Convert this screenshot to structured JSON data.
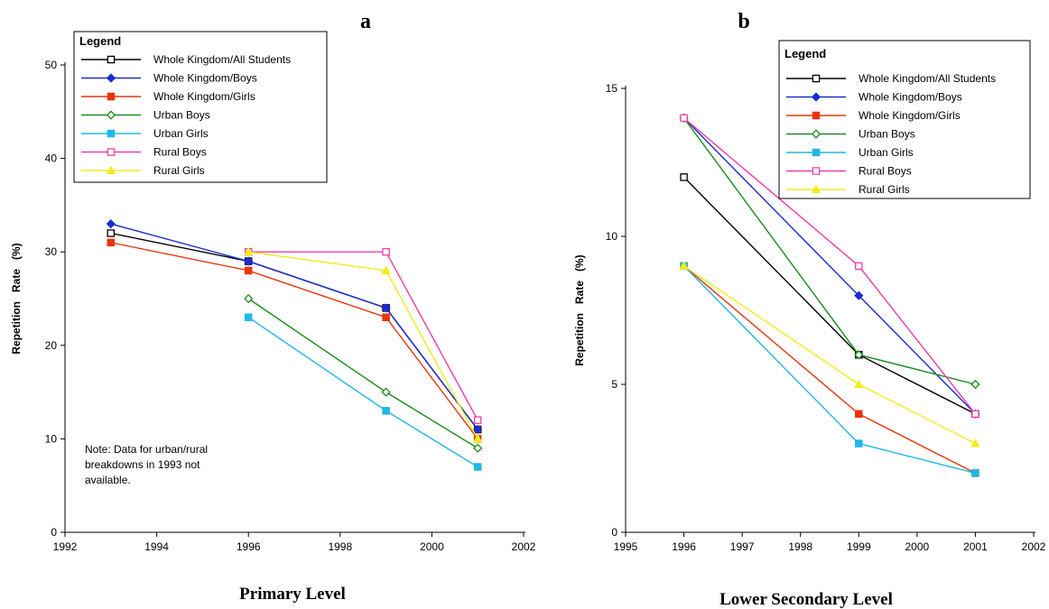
{
  "figure": {
    "panel_a": {
      "letter": "a",
      "caption": "Primary Level",
      "note": [
        "Note: Data for urban/rural",
        "breakdowns in 1993 not",
        "available."
      ]
    },
    "panel_b": {
      "letter": "b",
      "caption": "Lower Secondary Level"
    },
    "legend_title": "Legend"
  },
  "chart_data": [
    {
      "type": "line",
      "title": "a",
      "caption": "Primary Level",
      "ylabel": "Repetition   Rate   (%)",
      "xlabel": "",
      "xlim": [
        1992,
        2002
      ],
      "ylim": [
        0,
        52
      ],
      "xticks": [
        1992,
        1994,
        1996,
        1998,
        2000,
        2002
      ],
      "yticks": [
        0,
        10,
        20,
        30,
        40,
        50
      ],
      "grid": false,
      "legend_position": "top-left",
      "series": [
        {
          "name": "Whole Kingdom/All Students",
          "color": "#000000",
          "marker": "square-open",
          "points": [
            [
              1993,
              32
            ],
            [
              1996,
              29
            ],
            [
              1999,
              24
            ],
            [
              2001,
              11
            ]
          ]
        },
        {
          "name": "Whole Kingdom/Boys",
          "color": "#1a2bd6",
          "marker": "diamond-filled",
          "points": [
            [
              1993,
              33
            ],
            [
              1996,
              29
            ],
            [
              1999,
              24
            ],
            [
              2001,
              11
            ]
          ]
        },
        {
          "name": "Whole Kingdom/Girls",
          "color": "#e8350c",
          "marker": "square-filled",
          "points": [
            [
              1993,
              31
            ],
            [
              1996,
              28
            ],
            [
              1999,
              23
            ],
            [
              2001,
              10
            ]
          ]
        },
        {
          "name": "Urban Boys",
          "color": "#1a8c1a",
          "marker": "diamond-open",
          "points": [
            [
              1996,
              25
            ],
            [
              1999,
              15
            ],
            [
              2001,
              9
            ]
          ]
        },
        {
          "name": "Urban Girls",
          "color": "#1fb8e6",
          "marker": "square-filled",
          "points": [
            [
              1996,
              23
            ],
            [
              1999,
              13
            ],
            [
              2001,
              7
            ]
          ]
        },
        {
          "name": "Rural Boys",
          "color": "#ee3fa8",
          "marker": "square-open",
          "points": [
            [
              1996,
              30
            ],
            [
              1999,
              30
            ],
            [
              2001,
              12
            ]
          ]
        },
        {
          "name": "Rural Girls",
          "color": "#f2ec1a",
          "marker": "triangle-filled",
          "points": [
            [
              1996,
              30
            ],
            [
              1999,
              28
            ],
            [
              2001,
              10
            ]
          ]
        }
      ]
    },
    {
      "type": "line",
      "title": "b",
      "caption": "Lower Secondary Level",
      "ylabel": "Repetition   Rate   (%)",
      "xlabel": "",
      "xlim": [
        1995,
        2002
      ],
      "ylim": [
        0,
        15
      ],
      "xticks": [
        1995,
        1996,
        1997,
        1998,
        1999,
        2000,
        2001,
        2002
      ],
      "xtick_labels": [
        "1995",
        "1996",
        "1997",
        "1998",
        "1999",
        "2000",
        "2001",
        "2002"
      ],
      "yticks": [
        0,
        5,
        10,
        15
      ],
      "grid": false,
      "legend_position": "top-right",
      "series": [
        {
          "name": "Whole Kingdom/All Students",
          "color": "#000000",
          "marker": "square-open",
          "points": [
            [
              1996,
              12
            ],
            [
              1999,
              6
            ],
            [
              2001,
              4
            ]
          ]
        },
        {
          "name": "Whole Kingdom/Boys",
          "color": "#1a2bd6",
          "marker": "diamond-filled",
          "points": [
            [
              1996,
              14
            ],
            [
              1999,
              8
            ],
            [
              2001,
              4
            ]
          ]
        },
        {
          "name": "Whole Kingdom/Girls",
          "color": "#e8350c",
          "marker": "square-filled",
          "points": [
            [
              1996,
              9
            ],
            [
              1999,
              4
            ],
            [
              2001,
              2
            ]
          ]
        },
        {
          "name": "Urban Boys",
          "color": "#1a8c1a",
          "marker": "diamond-open",
          "points": [
            [
              1996,
              14
            ],
            [
              1999,
              6
            ],
            [
              2001,
              5
            ]
          ]
        },
        {
          "name": "Urban Girls",
          "color": "#1fb8e6",
          "marker": "square-filled",
          "points": [
            [
              1996,
              9
            ],
            [
              1999,
              3
            ],
            [
              2001,
              2
            ]
          ]
        },
        {
          "name": "Rural Boys",
          "color": "#ee3fa8",
          "marker": "square-open",
          "points": [
            [
              1996,
              14
            ],
            [
              1999,
              9
            ],
            [
              2001,
              4
            ]
          ]
        },
        {
          "name": "Rural Girls",
          "color": "#f2ec1a",
          "marker": "triangle-filled",
          "points": [
            [
              1996,
              9
            ],
            [
              1999,
              5
            ],
            [
              2001,
              3
            ]
          ]
        }
      ]
    }
  ]
}
